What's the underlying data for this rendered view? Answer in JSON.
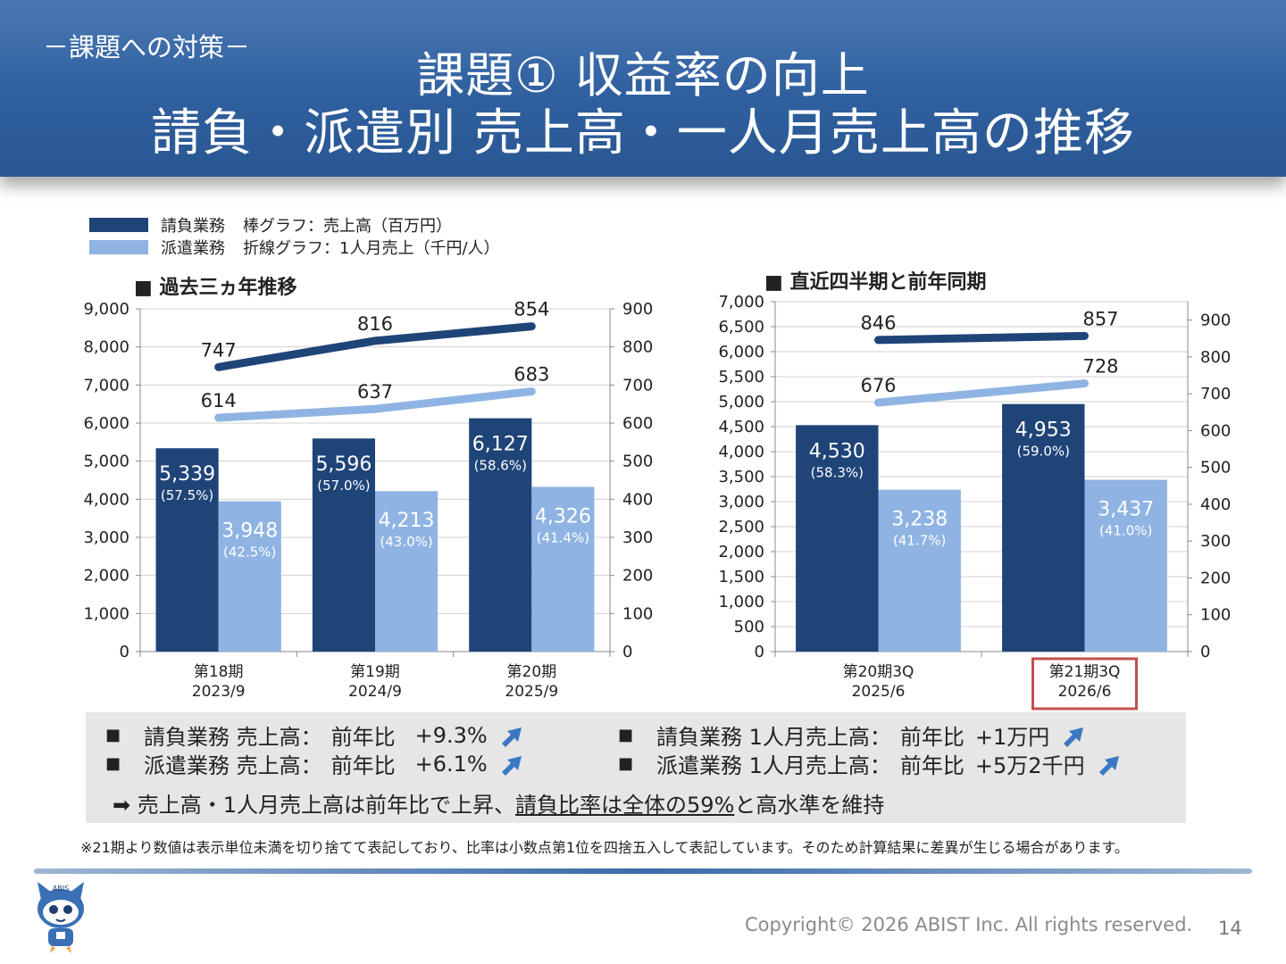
{
  "header": {
    "tag": "－課題への対策－",
    "title_line1": "課題① 収益率の向上",
    "title_line2": "請負・派遣別 売上高・一人月売上高の推移"
  },
  "legend": {
    "items": [
      {
        "name": "請負業務",
        "color": "#1f4478"
      },
      {
        "name": "派遣業務",
        "color": "#8fb4e3"
      }
    ],
    "bar_desc": "棒グラフ：売上高（百万円）",
    "line_desc": "折線グラフ：1人月売上（千円/人）"
  },
  "colors": {
    "contract": "#1f4478",
    "dispatch": "#8fb4e3",
    "highlight_box": "#c0504d",
    "arrow": "#3a78c2",
    "header": "#2f5f9e"
  },
  "chart_data": [
    {
      "type": "bar",
      "title": "■ 過去三ヵ年推移",
      "categories": [
        [
          "第18期",
          "2023/9"
        ],
        [
          "第19期",
          "2024/9"
        ],
        [
          "第20期",
          "2025/9"
        ]
      ],
      "ylim": [
        0,
        9000
      ],
      "yticks": [
        "0",
        "1,000",
        "2,000",
        "3,000",
        "4,000",
        "5,000",
        "6,000",
        "7,000",
        "8,000",
        "9,000"
      ],
      "y2lim": [
        0,
        900
      ],
      "y2ticks": [
        "0",
        "100",
        "200",
        "300",
        "400",
        "500",
        "600",
        "700",
        "800",
        "900"
      ],
      "series": [
        {
          "name": "請負業務",
          "values": [
            5339,
            5596,
            6127
          ],
          "labels": [
            "5,339",
            "5,596",
            "6,127"
          ],
          "shares": [
            "(57.5%)",
            "(57.0%)",
            "(58.6%)"
          ]
        },
        {
          "name": "派遣業務",
          "values": [
            3948,
            4213,
            4326
          ],
          "labels": [
            "3,948",
            "4,213",
            "4,326"
          ],
          "shares": [
            "(42.5%)",
            "(43.0%)",
            "(41.4%)"
          ]
        }
      ],
      "lines": [
        {
          "name": "請負業務",
          "values": [
            747,
            816,
            854
          ],
          "labels": [
            "747",
            "816",
            "854"
          ]
        },
        {
          "name": "派遣業務",
          "values": [
            614,
            637,
            683
          ],
          "labels": [
            "614",
            "637",
            "683"
          ]
        }
      ],
      "grid": true,
      "highlight": null
    },
    {
      "type": "bar",
      "title": "■ 直近四半期と前年同期",
      "categories": [
        [
          "第20期3Q",
          "2025/6"
        ],
        [
          "第21期3Q",
          "2026/6"
        ]
      ],
      "ylim": [
        0,
        7000
      ],
      "yticks": [
        "0",
        "500",
        "1,000",
        "1,500",
        "2,000",
        "2,500",
        "3,000",
        "3,500",
        "4,000",
        "4,500",
        "5,000",
        "5,500",
        "6,000",
        "6,500",
        "7,000"
      ],
      "y2lim": [
        0,
        950
      ],
      "y2ticks": [
        "0",
        "100",
        "200",
        "300",
        "400",
        "500",
        "600",
        "700",
        "800",
        "900"
      ],
      "series": [
        {
          "name": "請負業務",
          "values": [
            4530,
            4953
          ],
          "labels": [
            "4,530",
            "4,953"
          ],
          "shares": [
            "(58.3%)",
            "(59.0%)"
          ]
        },
        {
          "name": "派遣業務",
          "values": [
            3238,
            3437
          ],
          "labels": [
            "3,238",
            "3,437"
          ],
          "shares": [
            "(41.7%)",
            "(41.0%)"
          ]
        }
      ],
      "lines": [
        {
          "name": "請負業務",
          "values": [
            846,
            857
          ],
          "labels": [
            "846",
            "857"
          ]
        },
        {
          "name": "派遣業務",
          "values": [
            676,
            728
          ],
          "labels": [
            "676",
            "728"
          ]
        }
      ],
      "grid": true,
      "highlight": 1
    }
  ],
  "summary": {
    "bullet": "■",
    "items": [
      {
        "label": "請負業務 売上高：",
        "yoy": "前年比",
        "value": "+9.3%",
        "icon": "up-arrow-icon"
      },
      {
        "label": "派遣業務 売上高：",
        "yoy": "前年比",
        "value": "+6.1%",
        "icon": "up-arrow-icon"
      },
      {
        "label": "請負業務 1人月売上高：",
        "yoy": "前年比",
        "value": "+1万円",
        "icon": "up-arrow-icon"
      },
      {
        "label": "派遣業務 1人月売上高：",
        "yoy": "前年比",
        "value": "+5万2千円",
        "icon": "up-arrow-icon"
      }
    ],
    "conclusion_arrow": "➡",
    "conclusion_a": "売上高・1人月売上高は前年比で上昇、",
    "conclusion_u": "請負比率は全体の59%",
    "conclusion_b": "と高水準を維持"
  },
  "footnote": "※21期より数値は表示単位未満を切り捨てて表記しており、比率は小数点第1位を四捨五入して表記しています。そのため計算結果に差異が生じる場合があります。",
  "footer": {
    "copyright": "Copyright© 2026 ABIST Inc. All rights reserved.",
    "page": "14",
    "logo_text": "ABIS"
  }
}
